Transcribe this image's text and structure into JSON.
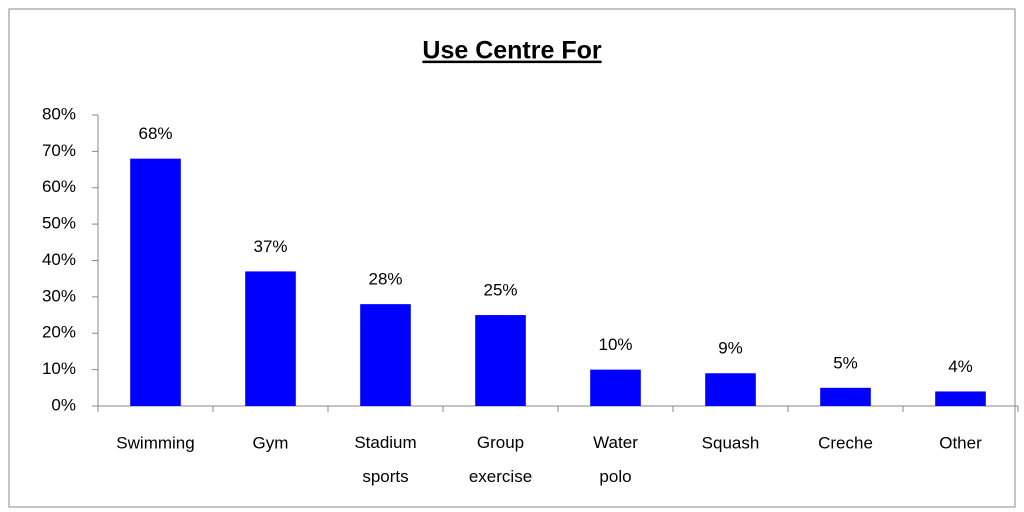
{
  "chart_data": {
    "type": "bar",
    "title": "Use Centre For",
    "categories": [
      "Swimming",
      "Gym",
      "Stadium sports",
      "Group exercise",
      "Water polo",
      "Squash",
      "Creche",
      "Other"
    ],
    "values": [
      68,
      37,
      28,
      25,
      10,
      9,
      5,
      4
    ],
    "value_labels": [
      "68%",
      "37%",
      "28%",
      "25%",
      "10%",
      "9%",
      "5%",
      "4%"
    ],
    "color": "#0000ff",
    "ylim": [
      0,
      80
    ],
    "yticks": [
      {
        "value": 0,
        "label": "0%"
      },
      {
        "value": 10,
        "label": "10%"
      },
      {
        "value": 20,
        "label": "20%"
      },
      {
        "value": 30,
        "label": "30%"
      },
      {
        "value": 40,
        "label": "40%"
      },
      {
        "value": 50,
        "label": "50%"
      },
      {
        "value": 60,
        "label": "60%"
      },
      {
        "value": 70,
        "label": "70%"
      },
      {
        "value": 80,
        "label": "80%"
      }
    ],
    "grid": false
  }
}
